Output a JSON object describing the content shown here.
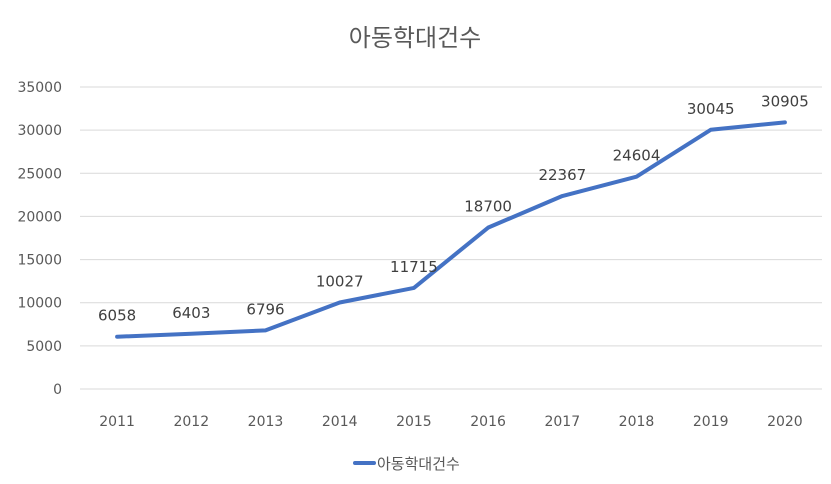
{
  "chart_data": {
    "type": "line",
    "title": "아동학대건수",
    "xlabel": "",
    "ylabel": "",
    "categories": [
      "2011",
      "2012",
      "2013",
      "2014",
      "2015",
      "2016",
      "2017",
      "2018",
      "2019",
      "2020"
    ],
    "series": [
      {
        "name": "아동학대건수",
        "values": [
          6058,
          6403,
          6796,
          10027,
          11715,
          18700,
          22367,
          24604,
          30045,
          30905
        ],
        "color": "#4472C4"
      }
    ],
    "ylim": [
      0,
      35000
    ],
    "yticks": [
      0,
      5000,
      10000,
      15000,
      20000,
      25000,
      30000,
      35000
    ],
    "grid": true,
    "data_labels": true,
    "legend": "bottom"
  }
}
